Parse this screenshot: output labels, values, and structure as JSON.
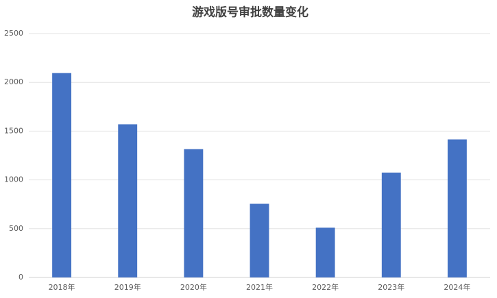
{
  "chart_data": {
    "type": "bar",
    "title": "游戏版号审批数量变化",
    "categories": [
      "2018年",
      "2019年",
      "2020年",
      "2021年",
      "2022年",
      "2023年",
      "2024年"
    ],
    "values": [
      2095,
      1570,
      1315,
      755,
      510,
      1075,
      1415
    ],
    "color": "#4472c4",
    "ylim": [
      0,
      2500
    ],
    "yticks": [
      0,
      500,
      1000,
      1500,
      2000,
      2500
    ],
    "grid": true
  }
}
